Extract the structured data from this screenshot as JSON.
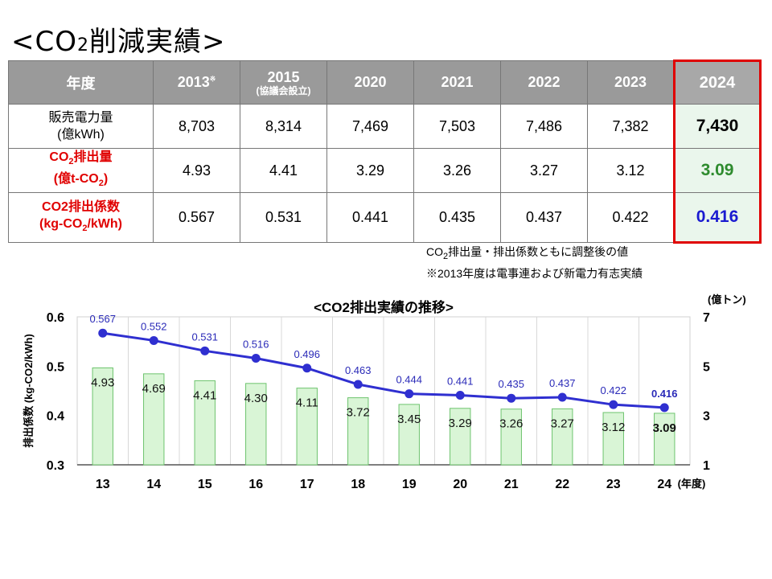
{
  "title": {
    "main": "<CO",
    "sub": "2",
    "rest": "削減実績>"
  },
  "table": {
    "header": {
      "label": "年度",
      "years": [
        "2013",
        "2015",
        "2020",
        "2021",
        "2022",
        "2023",
        "2024"
      ],
      "note_2013": "※",
      "note_2015": "(協議会設立)"
    },
    "rows": [
      {
        "label_line1": "販売電力量",
        "label_line2": "(億kWh)",
        "values": [
          "8,703",
          "8,314",
          "7,469",
          "7,503",
          "7,486",
          "7,382",
          "7,430"
        ]
      },
      {
        "label_line1a": "CO",
        "label_line1sub": "2",
        "label_line1b": "排出量",
        "label_line2a": "(億t-CO",
        "label_line2sub": "2",
        "label_line2b": ")",
        "values": [
          "4.93",
          "4.41",
          "3.29",
          "3.26",
          "3.27",
          "3.12",
          "3.09"
        ]
      },
      {
        "label_line1": "CO2排出係数",
        "label_line2a": "(kg-CO",
        "label_line2sub": "2",
        "label_line2b": "/kWh)",
        "values": [
          "0.567",
          "0.531",
          "0.441",
          "0.435",
          "0.437",
          "0.422",
          "0.416"
        ]
      }
    ]
  },
  "notes": {
    "line1a": "CO",
    "line1sub": "2",
    "line1b": "排出量・排出係数ともに調整後の値",
    "line2": "※2013年度は電事連および新電力有志実績"
  },
  "colors": {
    "line": "#2f2fd0",
    "bar_fill": "#d9f5d6",
    "bar_stroke": "#6ec46e",
    "highlight_border": "#e00000"
  },
  "chart_data": {
    "type": "bar+line",
    "title": "<CO2排出実績の推移>",
    "categories": [
      "13",
      "14",
      "15",
      "16",
      "17",
      "18",
      "19",
      "20",
      "21",
      "22",
      "23",
      "24"
    ],
    "x_unit": "(年度)",
    "series": [
      {
        "name": "CO2排出量",
        "kind": "bar",
        "axis": "right",
        "values": [
          4.93,
          4.69,
          4.41,
          4.3,
          4.11,
          3.72,
          3.45,
          3.29,
          3.26,
          3.27,
          3.12,
          3.09
        ],
        "labels": [
          "4.93",
          "4.69",
          "4.41",
          "4.30",
          "4.11",
          "3.72",
          "3.45",
          "3.29",
          "3.26",
          "3.27",
          "3.12",
          "3.09"
        ]
      },
      {
        "name": "排出係数",
        "kind": "line",
        "axis": "left",
        "values": [
          0.567,
          0.552,
          0.531,
          0.516,
          0.496,
          0.463,
          0.444,
          0.441,
          0.435,
          0.437,
          0.422,
          0.416
        ],
        "labels": [
          "0.567",
          "0.552",
          "0.531",
          "0.516",
          "0.496",
          "0.463",
          "0.444",
          "0.441",
          "0.435",
          "0.437",
          "0.422",
          "0.416"
        ]
      }
    ],
    "left_axis": {
      "label": "排出係数 (kg-CO2/kWh)",
      "min": 0.3,
      "max": 0.6,
      "ticks": [
        "0.3",
        "0.4",
        "0.5",
        "0.6"
      ]
    },
    "right_axis": {
      "unit": "(億トン)",
      "min": 1,
      "max": 7,
      "ticks": [
        "1",
        "3",
        "5",
        "7"
      ]
    },
    "grid": "vertical"
  }
}
